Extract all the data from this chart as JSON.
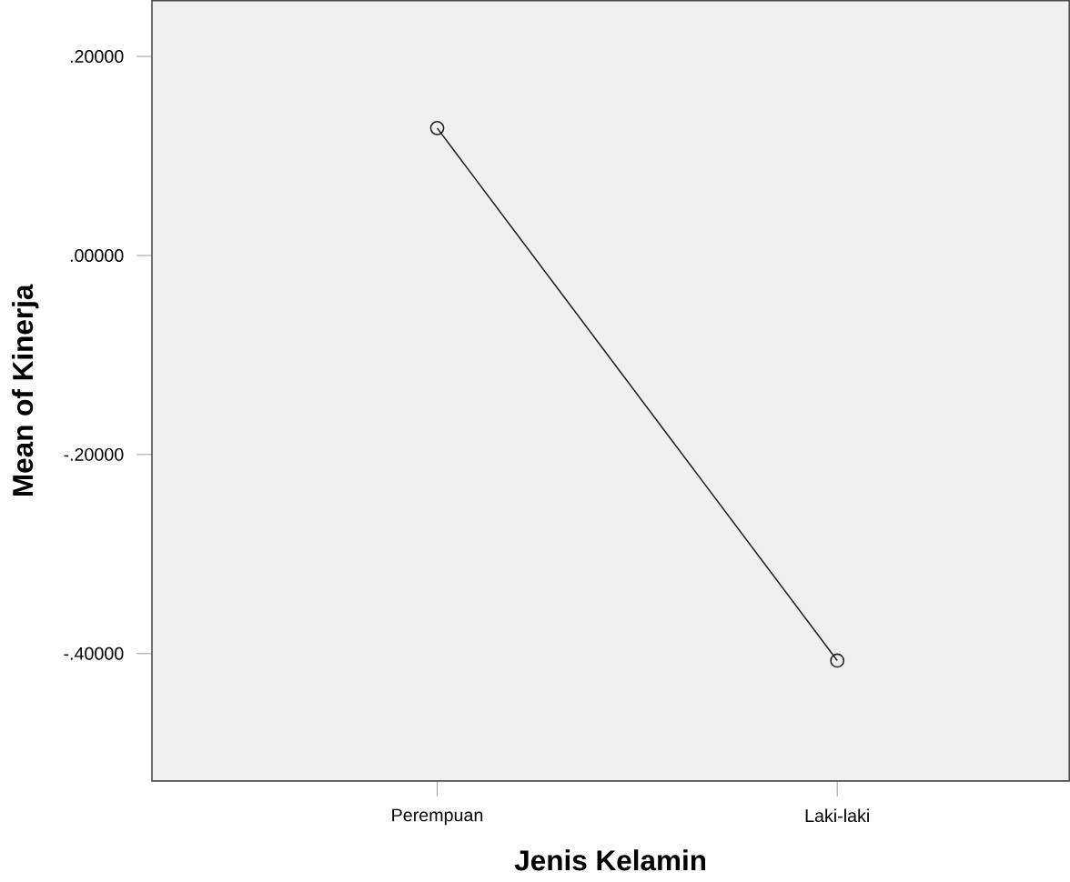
{
  "chart_data": {
    "type": "line",
    "xlabel": "Jenis Kelamin",
    "ylabel": "Mean of Kinerja",
    "categories": [
      "Perempuan",
      "Laki-laki"
    ],
    "values": [
      0.128,
      -0.407
    ],
    "color": "#222222",
    "marker": "circle",
    "ylim": [
      -0.528,
      0.256
    ],
    "yticks": [
      {
        "value": 0.2,
        "label": ".20000"
      },
      {
        "value": 0.0,
        "label": ".00000"
      },
      {
        "value": -0.2,
        "label": "-.20000"
      },
      {
        "value": -0.4,
        "label": "-.40000"
      }
    ],
    "line_style": "solid"
  }
}
